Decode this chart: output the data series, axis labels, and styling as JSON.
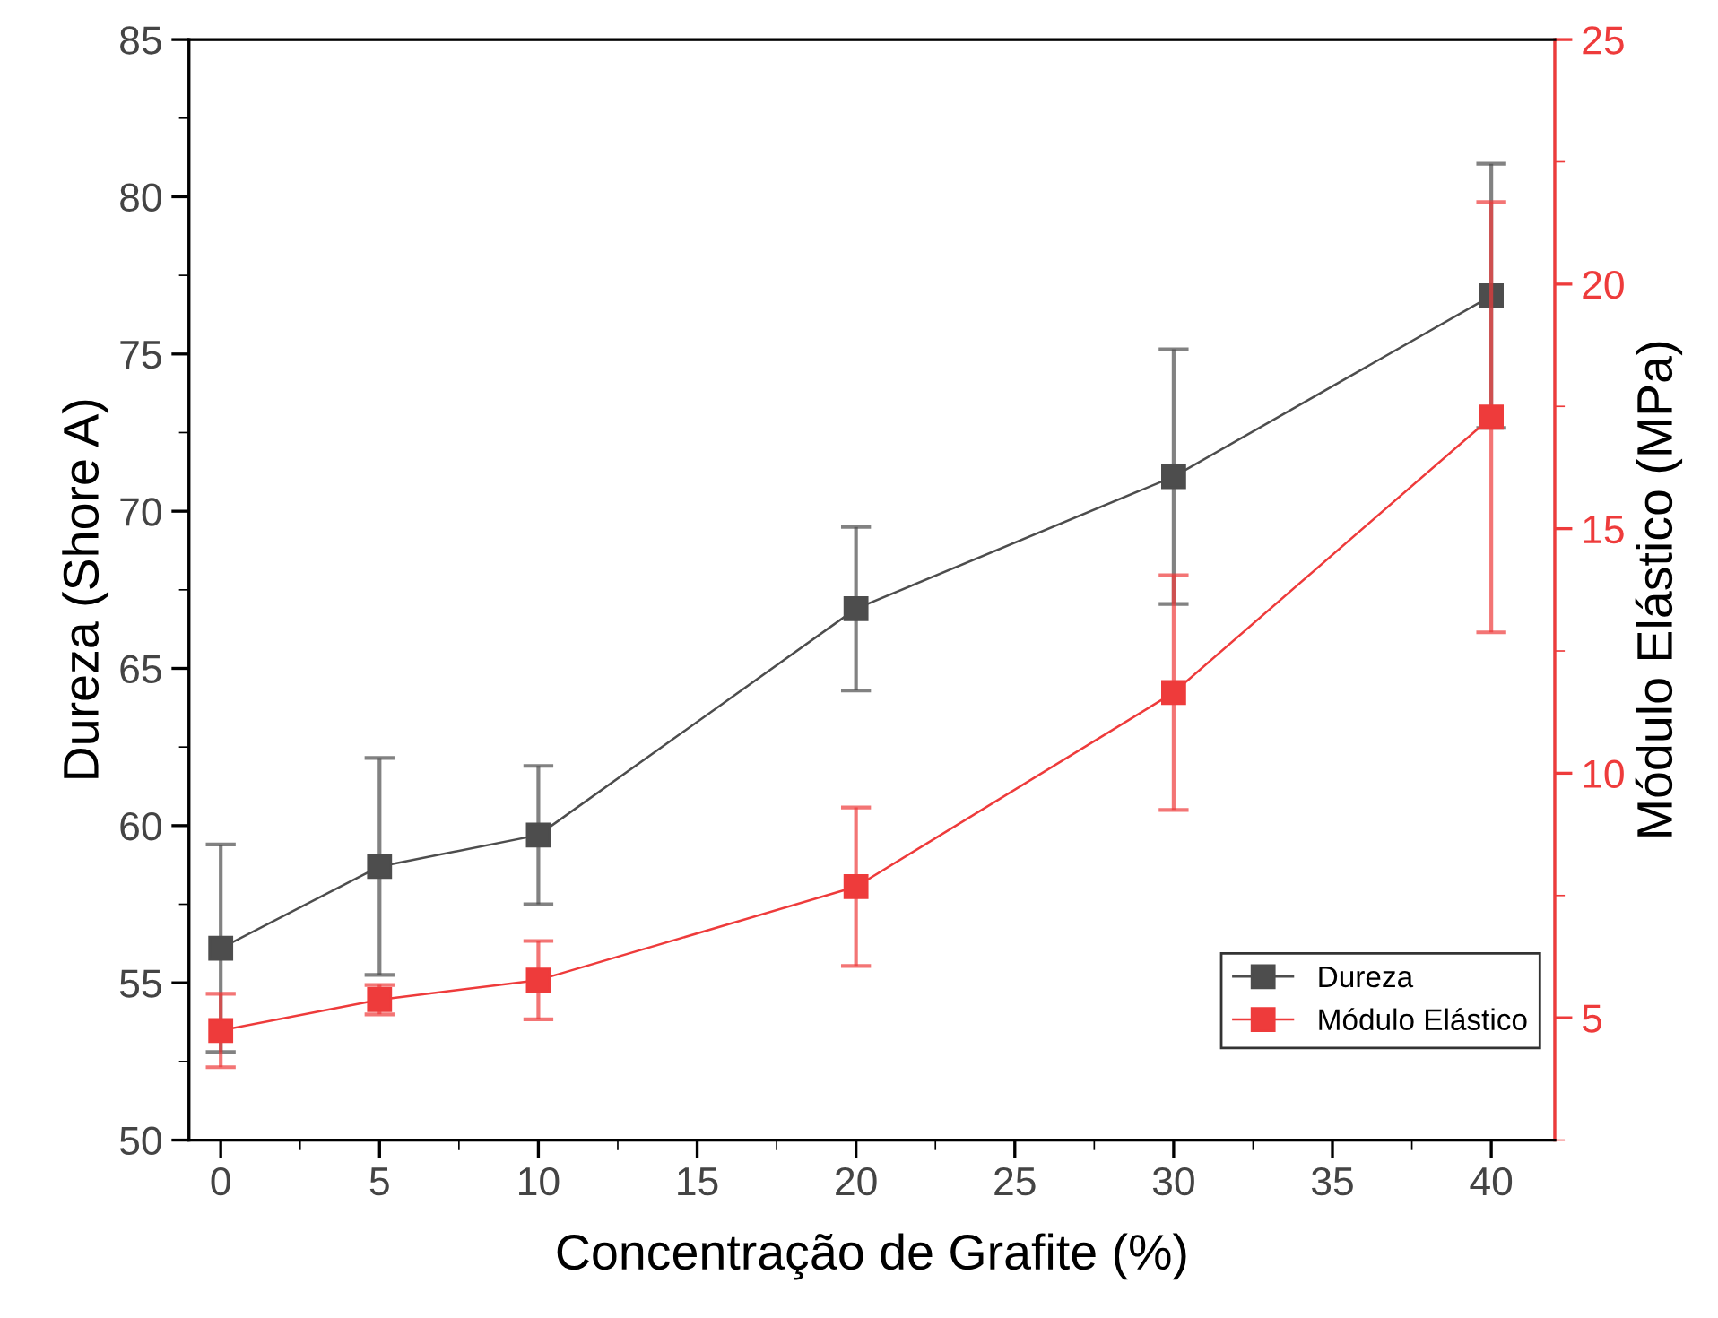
{
  "chart_data": {
    "type": "line",
    "xlabel": "Concentração de Grafite (%)",
    "ylabel": "Dureza (Shore A)",
    "y2label": "Módulo Elástico (MPa)",
    "x": [
      0,
      5,
      10,
      20,
      30,
      40
    ],
    "series": [
      {
        "name": "Dureza",
        "color": "#4d4d4d",
        "values": [
          56.1,
          58.7,
          59.7,
          66.9,
          71.1,
          76.85
        ],
        "errors": [
          3.3,
          3.45,
          2.2,
          2.6,
          4.05,
          4.2
        ]
      },
      {
        "name": "Módulo Elástico",
        "color": "#ee3b3b",
        "axis": "y2",
        "values": [
          4.74,
          5.37,
          5.77,
          7.68,
          11.65,
          17.28
        ],
        "errors": [
          0.75,
          0.3,
          0.8,
          1.62,
          2.4,
          4.4
        ]
      }
    ],
    "xlim": [
      -1,
      42
    ],
    "xticks": [
      0,
      5,
      10,
      15,
      20,
      25,
      30,
      35,
      40
    ],
    "ylim": [
      50,
      85
    ],
    "yticks": [
      50,
      55,
      60,
      65,
      70,
      75,
      80,
      85
    ],
    "y2lim": [
      2.5,
      25
    ],
    "y2ticks": [
      5,
      10,
      15,
      20,
      25
    ],
    "marker": "square",
    "line_style": "solid",
    "grid": false,
    "legend": "bottom right"
  }
}
